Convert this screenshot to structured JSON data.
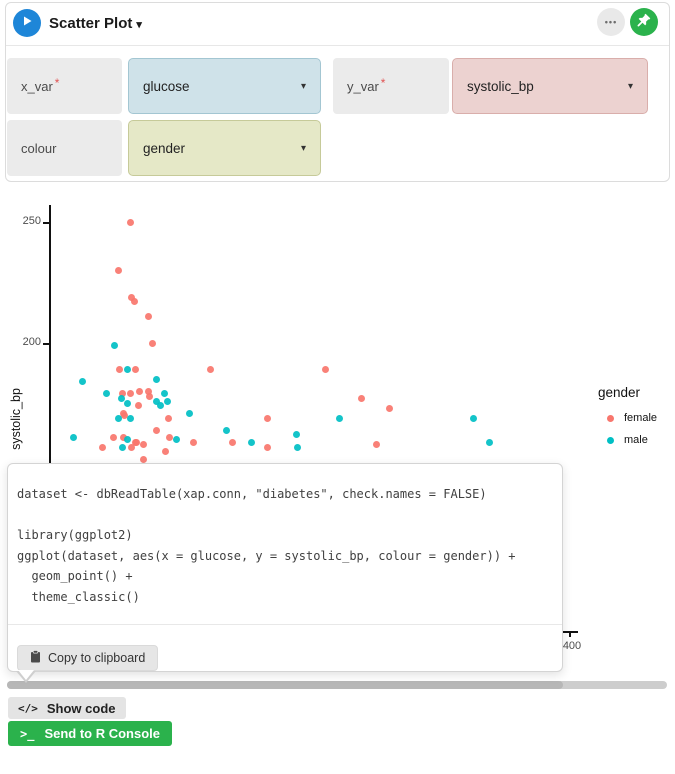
{
  "header": {
    "title": "Scatter Plot",
    "caret": "▾"
  },
  "icons": {
    "caret_down": "▾",
    "ellipsis": "•••",
    "code_glyph": "</>",
    "prompt_glyph": ">_"
  },
  "fields": {
    "x_var": {
      "label": "x_var",
      "asterisk": "*",
      "value": "glucose"
    },
    "y_var": {
      "label": "y_var",
      "asterisk": "*",
      "value": "systolic_bp"
    },
    "colour": {
      "label": "colour",
      "value": "gender"
    }
  },
  "chart_data": {
    "type": "scatter",
    "ylabel": "systolic_bp",
    "y_ticks_visible": [
      "250",
      "200"
    ],
    "x_ticks_visible": [
      "400"
    ],
    "legend": {
      "title": "gender",
      "position": "right",
      "entries": [
        {
          "label": "female",
          "color": "#F8766D"
        },
        {
          "label": "male",
          "color": "#00BFC4"
        }
      ]
    },
    "series": [
      {
        "name": "female",
        "color": "#F8766D",
        "points": [
          [
            66,
            250
          ],
          [
            57,
            230
          ],
          [
            67,
            219
          ],
          [
            69,
            217
          ],
          [
            80,
            211
          ],
          [
            83,
            200
          ],
          [
            58,
            189
          ],
          [
            70,
            189
          ],
          [
            127,
            189
          ],
          [
            60,
            179
          ],
          [
            66,
            179
          ],
          [
            73,
            180
          ],
          [
            80,
            180
          ],
          [
            81,
            178
          ],
          [
            72,
            174
          ],
          [
            61,
            171
          ],
          [
            62,
            170
          ],
          [
            95,
            169
          ],
          [
            170,
            169
          ],
          [
            86,
            164
          ],
          [
            53,
            161
          ],
          [
            61,
            161
          ],
          [
            96,
            161
          ],
          [
            70,
            159
          ],
          [
            71,
            159
          ],
          [
            76,
            158
          ],
          [
            114,
            159
          ],
          [
            144,
            159
          ],
          [
            170,
            157
          ],
          [
            45,
            157
          ],
          [
            67,
            157
          ],
          [
            93,
            155
          ],
          [
            76,
            152
          ],
          [
            214,
            189
          ],
          [
            242,
            177
          ],
          [
            263,
            173
          ],
          [
            253,
            158
          ]
        ]
      },
      {
        "name": "male",
        "color": "#00BFC4",
        "points": [
          [
            54,
            199
          ],
          [
            64,
            189
          ],
          [
            30,
            184
          ],
          [
            86,
            185
          ],
          [
            48,
            179
          ],
          [
            59,
            177
          ],
          [
            92,
            179
          ],
          [
            64,
            175
          ],
          [
            86,
            176
          ],
          [
            94,
            176
          ],
          [
            89,
            174
          ],
          [
            57,
            169
          ],
          [
            66,
            169
          ],
          [
            111,
            171
          ],
          [
            139,
            164
          ],
          [
            23,
            161
          ],
          [
            64,
            160
          ],
          [
            101,
            160
          ],
          [
            158,
            159
          ],
          [
            192,
            162
          ],
          [
            193,
            157
          ],
          [
            60,
            157
          ],
          [
            225,
            169
          ],
          [
            327,
            169
          ],
          [
            339,
            159
          ]
        ]
      }
    ]
  },
  "code_popup": {
    "lines": [
      "dataset <- dbReadTable(xap.conn, \"diabetes\", check.names = FALSE)",
      "",
      "library(ggplot2)",
      "ggplot(dataset, aes(x = glucose, y = systolic_bp, colour = gender)) +",
      "  geom_point() +",
      "  theme_classic()"
    ],
    "copy_label": "Copy to clipboard"
  },
  "footer": {
    "show_code": "Show code",
    "send_to_console": "Send to R Console"
  },
  "colors": {
    "accent_blue": "#1e86d8",
    "accent_green": "#2bb24c",
    "female": "#F8766D",
    "male": "#00BFC4"
  }
}
